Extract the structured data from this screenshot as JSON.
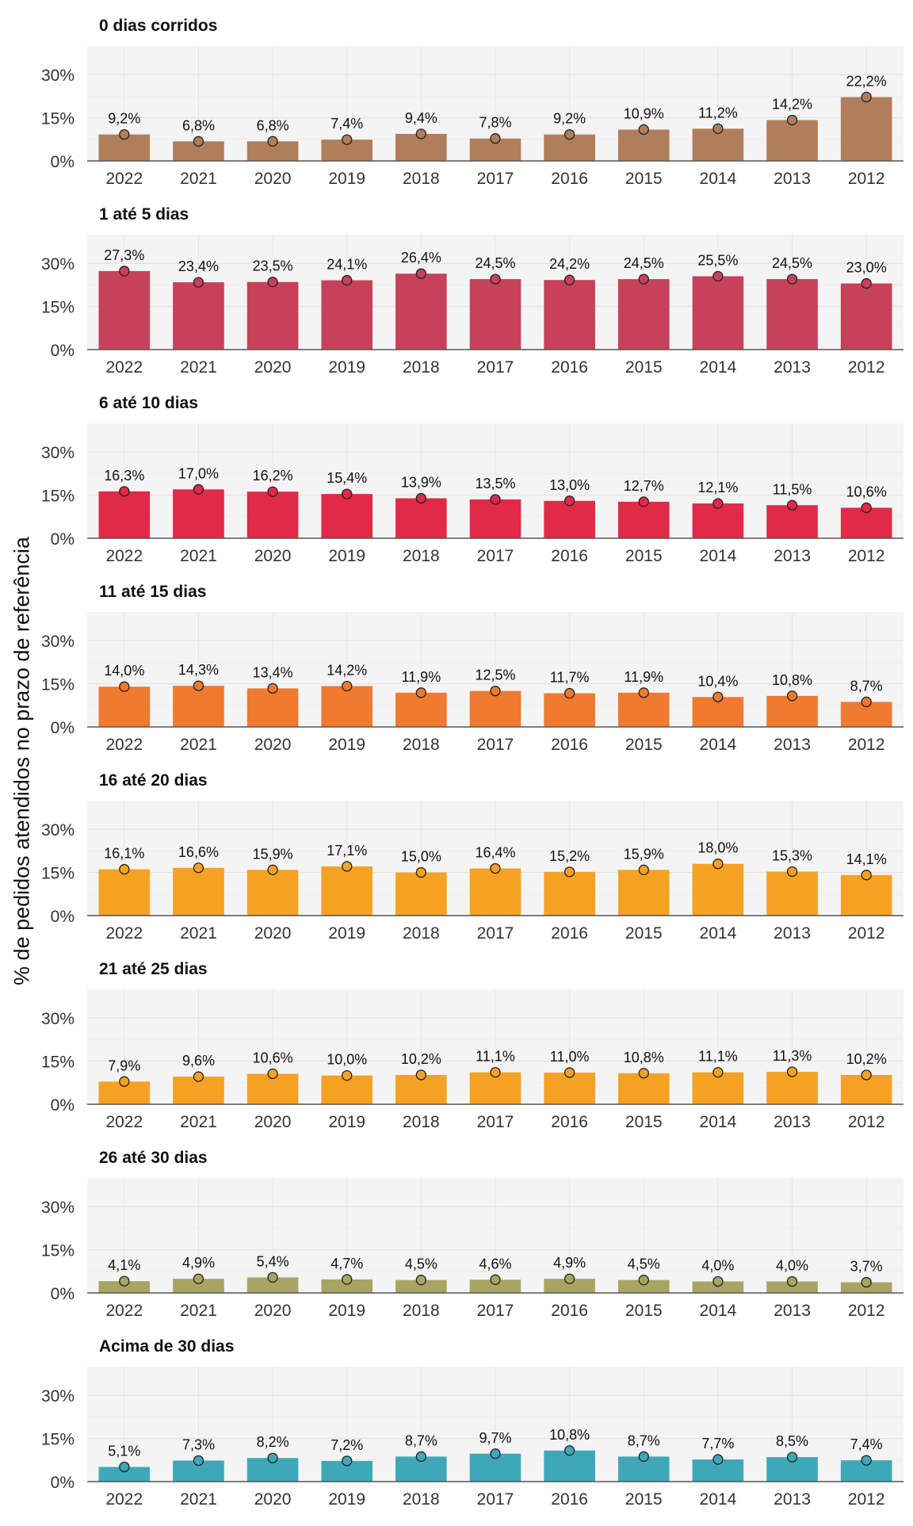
{
  "ylabel": "% de pedidos atendidos no prazo de referência",
  "chart_data": {
    "type": "bar",
    "facet_layout": "vertical",
    "ylabel": "% de pedidos atendidos no prazo de referência",
    "categories": [
      "2022",
      "2021",
      "2020",
      "2019",
      "2018",
      "2017",
      "2016",
      "2015",
      "2014",
      "2013",
      "2012"
    ],
    "yticks": [
      0,
      15,
      30
    ],
    "ytick_labels": [
      "0%",
      "15%",
      "30%"
    ],
    "ylim": [
      0,
      35
    ],
    "grid": true,
    "panel_background": "#f4f4f4",
    "panels": [
      {
        "title": "0 dias corridos",
        "color": "#b07e5a",
        "values": [
          9.2,
          6.8,
          6.8,
          7.4,
          9.4,
          7.8,
          9.2,
          10.9,
          11.2,
          14.2,
          22.2
        ],
        "labels": [
          "9,2%",
          "6,8%",
          "6,8%",
          "7,4%",
          "9,4%",
          "7,8%",
          "9,2%",
          "10,9%",
          "11,2%",
          "14,2%",
          "22,2%"
        ]
      },
      {
        "title": "1 até 5 dias",
        "color": "#c7415a",
        "values": [
          27.3,
          23.4,
          23.5,
          24.1,
          26.4,
          24.5,
          24.2,
          24.5,
          25.5,
          24.5,
          23.0
        ],
        "labels": [
          "27,3%",
          "23,4%",
          "23,5%",
          "24,1%",
          "26,4%",
          "24,5%",
          "24,2%",
          "24,5%",
          "25,5%",
          "24,5%",
          "23,0%"
        ]
      },
      {
        "title": "6 até 10 dias",
        "color": "#e02a48",
        "values": [
          16.3,
          17.0,
          16.2,
          15.4,
          13.9,
          13.5,
          13.0,
          12.7,
          12.1,
          11.5,
          10.6
        ],
        "labels": [
          "16,3%",
          "17,0%",
          "16,2%",
          "15,4%",
          "13,9%",
          "13,5%",
          "13,0%",
          "12,7%",
          "12,1%",
          "11,5%",
          "10,6%"
        ]
      },
      {
        "title": "11 até 15 dias",
        "color": "#ef7a30",
        "values": [
          14.0,
          14.3,
          13.4,
          14.2,
          11.9,
          12.5,
          11.7,
          11.9,
          10.4,
          10.8,
          8.7
        ],
        "labels": [
          "14,0%",
          "14,3%",
          "13,4%",
          "14,2%",
          "11,9%",
          "12,5%",
          "11,7%",
          "11,9%",
          "10,4%",
          "10,8%",
          "8,7%"
        ]
      },
      {
        "title": "16 até 20 dias",
        "color": "#f5a223",
        "values": [
          16.1,
          16.6,
          15.9,
          17.1,
          15.0,
          16.4,
          15.2,
          15.9,
          18.0,
          15.3,
          14.1
        ],
        "labels": [
          "16,1%",
          "16,6%",
          "15,9%",
          "17,1%",
          "15,0%",
          "16,4%",
          "15,2%",
          "15,9%",
          "18,0%",
          "15,3%",
          "14,1%"
        ]
      },
      {
        "title": "21 até 25 dias",
        "color": "#f5a223",
        "values": [
          7.9,
          9.6,
          10.6,
          10.0,
          10.2,
          11.1,
          11.0,
          10.8,
          11.1,
          11.3,
          10.2
        ],
        "labels": [
          "7,9%",
          "9,6%",
          "10,6%",
          "10,0%",
          "10,2%",
          "11,1%",
          "11,0%",
          "10,8%",
          "11,1%",
          "11,3%",
          "10,2%"
        ]
      },
      {
        "title": "26 até 30 dias",
        "color": "#a8a562",
        "values": [
          4.1,
          4.9,
          5.4,
          4.7,
          4.5,
          4.6,
          4.9,
          4.5,
          4.0,
          4.0,
          3.7
        ],
        "labels": [
          "4,1%",
          "4,9%",
          "5,4%",
          "4,7%",
          "4,5%",
          "4,6%",
          "4,9%",
          "4,5%",
          "4,0%",
          "4,0%",
          "3,7%"
        ]
      },
      {
        "title": "Acima de 30 dias",
        "color": "#3fa8b8",
        "values": [
          5.1,
          7.3,
          8.2,
          7.2,
          8.7,
          9.7,
          10.8,
          8.7,
          7.7,
          8.5,
          7.4
        ],
        "labels": [
          "5,1%",
          "7,3%",
          "8,2%",
          "7,2%",
          "8,7%",
          "9,7%",
          "10,8%",
          "8,7%",
          "7,7%",
          "8,5%",
          "7,4%"
        ]
      }
    ]
  }
}
